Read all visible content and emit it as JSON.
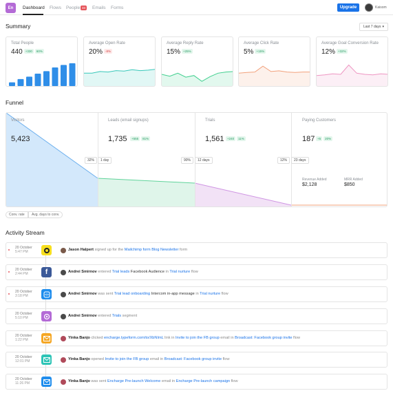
{
  "nav": {
    "logo": "En",
    "items": [
      "Dashboard",
      "Flows",
      "People",
      "Emails",
      "Forms"
    ],
    "people_badge": "33",
    "upgrade": "Upgrade",
    "user": "Kaisom"
  },
  "summary": {
    "title": "Summary",
    "date_range": "Last 7 days",
    "cards": [
      {
        "title": "Total People",
        "value": "440",
        "pills": [
          "+330",
          "60%"
        ],
        "pill_colors": [
          "green",
          "green"
        ],
        "color": "#2f8ee8"
      },
      {
        "title": "Average Open Rate",
        "value": "20%",
        "pills": [
          "-8%"
        ],
        "pill_colors": [
          "red"
        ],
        "color": "#36c7b9"
      },
      {
        "title": "Average Reply Rate",
        "value": "15%",
        "pills": [
          "+25%"
        ],
        "pill_colors": [
          "green"
        ],
        "color": "#3fcf8e"
      },
      {
        "title": "Average Click Rate",
        "value": "5%",
        "pills": [
          "+15%"
        ],
        "pill_colors": [
          "green"
        ],
        "color": "#f2a07a"
      },
      {
        "title": "Average Goal Conversion Rate",
        "value": "12%",
        "pills": [
          "+32%"
        ],
        "pill_colors": [
          "green"
        ],
        "color": "#ee95c2"
      }
    ],
    "total_people_bars": [
      0.15,
      0.28,
      0.38,
      0.5,
      0.6,
      0.75,
      0.85,
      0.92
    ]
  },
  "funnel": {
    "title": "Funnel",
    "stages": [
      {
        "label": "Visitors",
        "value": "5,423"
      },
      {
        "label": "Leads (email signups)",
        "value": "1,735",
        "pills": [
          "+555",
          "81%"
        ]
      },
      {
        "label": "Trials",
        "value": "1,561",
        "pills": [
          "+240",
          "11%"
        ]
      },
      {
        "label": "Paying Customers",
        "value": "187",
        "pills": [
          "+5",
          "20%"
        ]
      }
    ],
    "conversions": [
      {
        "rate": "32%",
        "days": "1 day"
      },
      {
        "rate": "90%",
        "days": "12 days"
      },
      {
        "rate": "12%",
        "days": "23 days"
      }
    ],
    "revenue_label": "Revenue Added",
    "revenue_value": "$2,128",
    "mrr_label": "MRR Added",
    "mrr_value": "$850",
    "toggle_left": "Conv. rate",
    "toggle_right": "Avg. days to conv."
  },
  "activity": {
    "title": "Activity Stream",
    "items": [
      {
        "date": "20 October",
        "time": "5:47 PM",
        "unread": true,
        "icon": "mailchimp-icon",
        "icon_bg": "#f7df1e",
        "avatar": "#7a5a4a",
        "parts": [
          [
            "name",
            "Jason Halpert"
          ],
          [
            "t",
            " signed up for the "
          ],
          [
            "link",
            "Mailchimp form Blog Newsletter"
          ],
          [
            "t",
            " form"
          ]
        ]
      },
      {
        "date": "20 October",
        "time": "2:44 PM",
        "unread": true,
        "icon": "facebook-icon",
        "icon_bg": "#3b5998",
        "avatar": "#4a4a4a",
        "parts": [
          [
            "name",
            "Andrei Smirnov"
          ],
          [
            "t",
            " entered "
          ],
          [
            "link",
            "Trial leads"
          ],
          [
            "dark",
            " Facebook Audience"
          ],
          [
            "t",
            " in "
          ],
          [
            "link",
            "Trial nurture"
          ],
          [
            "t",
            " flow"
          ]
        ]
      },
      {
        "date": "20 October",
        "time": "3:18 PM",
        "unread": true,
        "icon": "intercom-icon",
        "icon_bg": "#1f8ded",
        "avatar": "#4a4a4a",
        "parts": [
          [
            "name",
            "Andrei Smirnov"
          ],
          [
            "t",
            " was sent "
          ],
          [
            "link",
            "Trial lead onboarding"
          ],
          [
            "dark",
            " Intercom in-app message"
          ],
          [
            "t",
            " in "
          ],
          [
            "link",
            "Trial nurture"
          ],
          [
            "t",
            " flow"
          ]
        ]
      },
      {
        "date": "20 October",
        "time": "5:10 PM",
        "unread": false,
        "icon": "segment-icon",
        "icon_bg": "#b46bd6",
        "avatar": "#4a4a4a",
        "parts": [
          [
            "name",
            "Andrei Smirnov"
          ],
          [
            "t",
            " entered "
          ],
          [
            "link",
            "Trials"
          ],
          [
            "t",
            " segment"
          ]
        ]
      },
      {
        "date": "20 October",
        "time": "1:22 PM",
        "unread": false,
        "icon": "email-icon",
        "icon_bg": "#f5a623",
        "avatar": "#b04a5a",
        "parts": [
          [
            "name",
            "Yinka Banjo"
          ],
          [
            "t",
            " clicked "
          ],
          [
            "link",
            "encharge.typeform.com/to/XbNImL"
          ],
          [
            "t",
            " link in "
          ],
          [
            "link",
            "Invite to join the FB group"
          ],
          [
            "t",
            " email in "
          ],
          [
            "link",
            "Broadcast: Facebook group invite"
          ],
          [
            "t",
            " flow"
          ]
        ]
      },
      {
        "date": "20 October",
        "time": "12:01 PM",
        "unread": false,
        "icon": "email-open-icon",
        "icon_bg": "#2ec4b6",
        "avatar": "#b04a5a",
        "parts": [
          [
            "name",
            "Yinka Banjo"
          ],
          [
            "t",
            " opened "
          ],
          [
            "link",
            "Invite to join the FB group"
          ],
          [
            "t",
            " email in "
          ],
          [
            "link",
            "Broadcast: Facebook group invite"
          ],
          [
            "t",
            " flow"
          ]
        ]
      },
      {
        "date": "20 October",
        "time": "11:26 PM",
        "unread": false,
        "icon": "email-sent-icon",
        "icon_bg": "#1f8ded",
        "avatar": "#b04a5a",
        "parts": [
          [
            "name",
            "Yinka Banjo"
          ],
          [
            "t",
            " was sent "
          ],
          [
            "link",
            "Encharge Pre-launch Welcome"
          ],
          [
            "t",
            " email in "
          ],
          [
            "link",
            "Encharge Pre-launch campaign"
          ],
          [
            "t",
            " flow"
          ]
        ]
      }
    ]
  }
}
